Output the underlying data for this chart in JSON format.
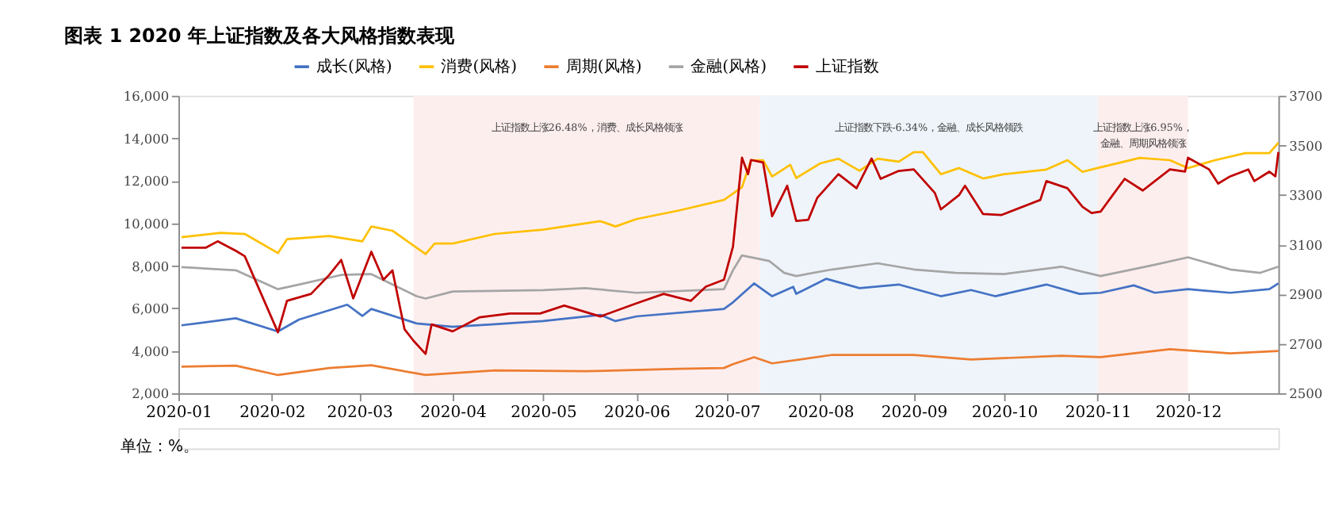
{
  "chart_data": {
    "type": "line",
    "title": "图表 1 2020 年上证指数及各大风格指数表现",
    "xlim": [
      "2020-01-01",
      "2020-12-31"
    ],
    "xticks": [
      {
        "value": "2020-01-01",
        "label": "2020-01"
      },
      {
        "value": "2020-02-01",
        "label": "2020-02"
      },
      {
        "value": "2020-03-01",
        "label": "2020-03"
      },
      {
        "value": "2020-04-01",
        "label": "2020-04"
      },
      {
        "value": "2020-05-01",
        "label": "2020-05"
      },
      {
        "value": "2020-06-01",
        "label": "2020-06"
      },
      {
        "value": "2020-07-01",
        "label": "2020-07"
      },
      {
        "value": "2020-08-01",
        "label": "2020-08"
      },
      {
        "value": "2020-09-01",
        "label": "2020-09"
      },
      {
        "value": "2020-10-01",
        "label": "2020-10"
      },
      {
        "value": "2020-11-01",
        "label": "2020-11"
      },
      {
        "value": "2020-12-01",
        "label": "2020-12"
      }
    ],
    "ylim": [
      2000,
      16000
    ],
    "yticks": [
      {
        "value": 2000,
        "label": "2,000"
      },
      {
        "value": 4000,
        "label": "4,000"
      },
      {
        "value": 6000,
        "label": "6,000"
      },
      {
        "value": 8000,
        "label": "8,000"
      },
      {
        "value": 10000,
        "label": "10,000"
      },
      {
        "value": 12000,
        "label": "12,000"
      },
      {
        "value": 14000,
        "label": "14,000"
      },
      {
        "value": 16000,
        "label": "16,000"
      }
    ],
    "y2lim": [
      2500,
      3700
    ],
    "y2ticks": [
      2500,
      2700,
      2900,
      3100,
      3300,
      3500,
      3700
    ],
    "grid": false,
    "legend": "top",
    "marker": "none",
    "line_style": "solid",
    "bands": [
      {
        "axis": "x",
        "from": "2020-03-19",
        "to": "2020-07-12",
        "label": "上证指数上涨26.48%，消费、成长风格领涨",
        "color": "#fdeeee"
      },
      {
        "axis": "x",
        "from": "2020-07-12",
        "to": "2020-11-01",
        "label": "上证指数下跌-6.34%，金融、成长风格领跌",
        "color": "#eef4fa"
      },
      {
        "axis": "x",
        "from": "2020-11-01",
        "to": "2020-12-01",
        "label": "上证指数上涨6.95%，金融、周期风格领涨",
        "color": "#fdeeee"
      }
    ],
    "annotations": [
      "单位：%。"
    ],
    "series": [
      {
        "name": "成长(风格)",
        "color": "#4472c4",
        "x": [
          "2020-01-02",
          "2020-01-20",
          "2020-02-03",
          "2020-02-10",
          "2020-02-26",
          "2020-03-02",
          "2020-03-05",
          "2020-03-20",
          "2020-04-01",
          "2020-04-15",
          "2020-05-01",
          "2020-05-20",
          "2020-05-25",
          "2020-06-01",
          "2020-06-30",
          "2020-07-03",
          "2020-07-10",
          "2020-07-16",
          "2020-07-23",
          "2020-07-24",
          "2020-08-03",
          "2020-08-14",
          "2020-08-27",
          "2020-09-10",
          "2020-09-20",
          "2020-09-28",
          "2020-10-15",
          "2020-10-26",
          "2020-11-02",
          "2020-11-13",
          "2020-11-20",
          "2020-12-01",
          "2020-12-15",
          "2020-12-28",
          "2020-12-31"
        ],
        "values": [
          5200,
          5530,
          4910,
          5470,
          6170,
          5640,
          5970,
          5290,
          5130,
          5250,
          5400,
          5690,
          5400,
          5620,
          5970,
          6280,
          7170,
          6570,
          7010,
          6680,
          7390,
          6950,
          7120,
          6570,
          6860,
          6570,
          7120,
          6680,
          6730,
          7080,
          6730,
          6900,
          6730,
          6900,
          7170
        ]
      },
      {
        "name": "消费(风格)",
        "color": "#ffc000",
        "x": [
          "2020-01-02",
          "2020-01-15",
          "2020-01-23",
          "2020-02-03",
          "2020-02-06",
          "2020-02-20",
          "2020-03-02",
          "2020-03-05",
          "2020-03-12",
          "2020-03-23",
          "2020-03-26",
          "2020-04-01",
          "2020-04-15",
          "2020-05-01",
          "2020-05-20",
          "2020-05-25",
          "2020-06-01",
          "2020-06-15",
          "2020-06-30",
          "2020-07-06",
          "2020-07-09",
          "2020-07-13",
          "2020-07-16",
          "2020-07-22",
          "2020-07-24",
          "2020-08-01",
          "2020-08-07",
          "2020-08-14",
          "2020-08-20",
          "2020-08-27",
          "2020-09-01",
          "2020-09-04",
          "2020-09-10",
          "2020-09-16",
          "2020-09-24",
          "2020-10-01",
          "2020-10-15",
          "2020-10-22",
          "2020-10-27",
          "2020-11-01",
          "2020-11-15",
          "2020-11-25",
          "2020-12-01",
          "2020-12-10",
          "2020-12-20",
          "2020-12-28",
          "2020-12-31"
        ],
        "values": [
          9350,
          9550,
          9500,
          8600,
          9250,
          9400,
          9150,
          9850,
          9650,
          8550,
          9050,
          9050,
          9500,
          9700,
          10100,
          9850,
          10200,
          10600,
          11100,
          11700,
          12970,
          12970,
          12200,
          12750,
          12130,
          12820,
          13040,
          12470,
          13040,
          12900,
          13350,
          13350,
          12310,
          12600,
          12110,
          12310,
          12530,
          12970,
          12420,
          12600,
          13080,
          12970,
          12600,
          12970,
          13300,
          13300,
          13790
        ]
      },
      {
        "name": "周期(风格)",
        "color": "#ed7d31",
        "x": [
          "2020-01-02",
          "2020-01-20",
          "2020-02-03",
          "2020-02-20",
          "2020-03-05",
          "2020-03-23",
          "2020-04-15",
          "2020-05-15",
          "2020-06-15",
          "2020-06-30",
          "2020-07-03",
          "2020-07-10",
          "2020-07-16",
          "2020-08-05",
          "2020-09-01",
          "2020-09-20",
          "2020-10-20",
          "2020-11-02",
          "2020-11-25",
          "2020-12-15",
          "2020-12-31"
        ],
        "values": [
          3260,
          3300,
          2860,
          3190,
          3320,
          2860,
          3080,
          3040,
          3150,
          3190,
          3370,
          3700,
          3410,
          3810,
          3810,
          3590,
          3770,
          3700,
          4080,
          3880,
          3990
        ]
      },
      {
        "name": "金融(风格)",
        "color": "#a5a5a5",
        "x": [
          "2020-01-02",
          "2020-01-20",
          "2020-02-03",
          "2020-02-10",
          "2020-02-24",
          "2020-03-05",
          "2020-03-20",
          "2020-03-23",
          "2020-04-01",
          "2020-05-01",
          "2020-05-15",
          "2020-06-01",
          "2020-06-30",
          "2020-07-03",
          "2020-07-06",
          "2020-07-15",
          "2020-07-20",
          "2020-07-24",
          "2020-08-05",
          "2020-08-20",
          "2020-09-01",
          "2020-09-15",
          "2020-10-01",
          "2020-10-20",
          "2020-11-02",
          "2020-11-20",
          "2020-12-01",
          "2020-12-15",
          "2020-12-25",
          "2020-12-31"
        ],
        "values": [
          7940,
          7790,
          6900,
          7120,
          7570,
          7610,
          6570,
          6460,
          6790,
          6860,
          6950,
          6730,
          6900,
          7790,
          8490,
          8230,
          7670,
          7520,
          7830,
          8120,
          7830,
          7670,
          7610,
          7960,
          7520,
          8050,
          8400,
          7830,
          7670,
          7960
        ]
      },
      {
        "name": "上证指数",
        "color": "#c00000",
        "axis": "y2",
        "x": [
          "2020-01-02",
          "2020-01-10",
          "2020-01-14",
          "2020-01-20",
          "2020-01-23",
          "2020-02-03",
          "2020-02-06",
          "2020-02-14",
          "2020-02-20",
          "2020-02-24",
          "2020-02-28",
          "2020-03-05",
          "2020-03-09",
          "2020-03-12",
          "2020-03-16",
          "2020-03-19",
          "2020-03-23",
          "2020-03-25",
          "2020-04-01",
          "2020-04-10",
          "2020-04-20",
          "2020-04-30",
          "2020-05-08",
          "2020-05-20",
          "2020-06-01",
          "2020-06-10",
          "2020-06-19",
          "2020-06-24",
          "2020-06-30",
          "2020-07-03",
          "2020-07-06",
          "2020-07-08",
          "2020-07-09",
          "2020-07-13",
          "2020-07-16",
          "2020-07-21",
          "2020-07-24",
          "2020-07-28",
          "2020-07-31",
          "2020-08-07",
          "2020-08-13",
          "2020-08-18",
          "2020-08-21",
          "2020-08-27",
          "2020-09-01",
          "2020-09-08",
          "2020-09-10",
          "2020-09-16",
          "2020-09-18",
          "2020-09-24",
          "2020-09-30",
          "2020-10-13",
          "2020-10-15",
          "2020-10-22",
          "2020-10-27",
          "2020-10-30",
          "2020-11-02",
          "2020-11-06",
          "2020-11-10",
          "2020-11-16",
          "2020-11-20",
          "2020-11-25",
          "2020-11-30",
          "2020-12-01",
          "2020-12-08",
          "2020-12-11",
          "2020-12-15",
          "2020-12-21",
          "2020-12-23",
          "2020-12-28",
          "2020-12-30",
          "2020-12-31"
        ],
        "values": [
          3087,
          3087,
          3113,
          3075,
          3053,
          2746,
          2873,
          2901,
          2977,
          3038,
          2883,
          3071,
          2958,
          2996,
          2759,
          2712,
          2659,
          2778,
          2750,
          2807,
          2822,
          2822,
          2854,
          2810,
          2863,
          2901,
          2873,
          2930,
          2958,
          3091,
          3450,
          3384,
          3441,
          3431,
          3214,
          3337,
          3195,
          3200,
          3289,
          3384,
          3327,
          3447,
          3365,
          3397,
          3403,
          3308,
          3242,
          3299,
          3337,
          3223,
          3219,
          3280,
          3356,
          3327,
          3252,
          3227,
          3233,
          3299,
          3365,
          3318,
          3356,
          3403,
          3394,
          3450,
          3403,
          3346,
          3375,
          3403,
          3356,
          3394,
          3375,
          3473
        ]
      }
    ]
  }
}
